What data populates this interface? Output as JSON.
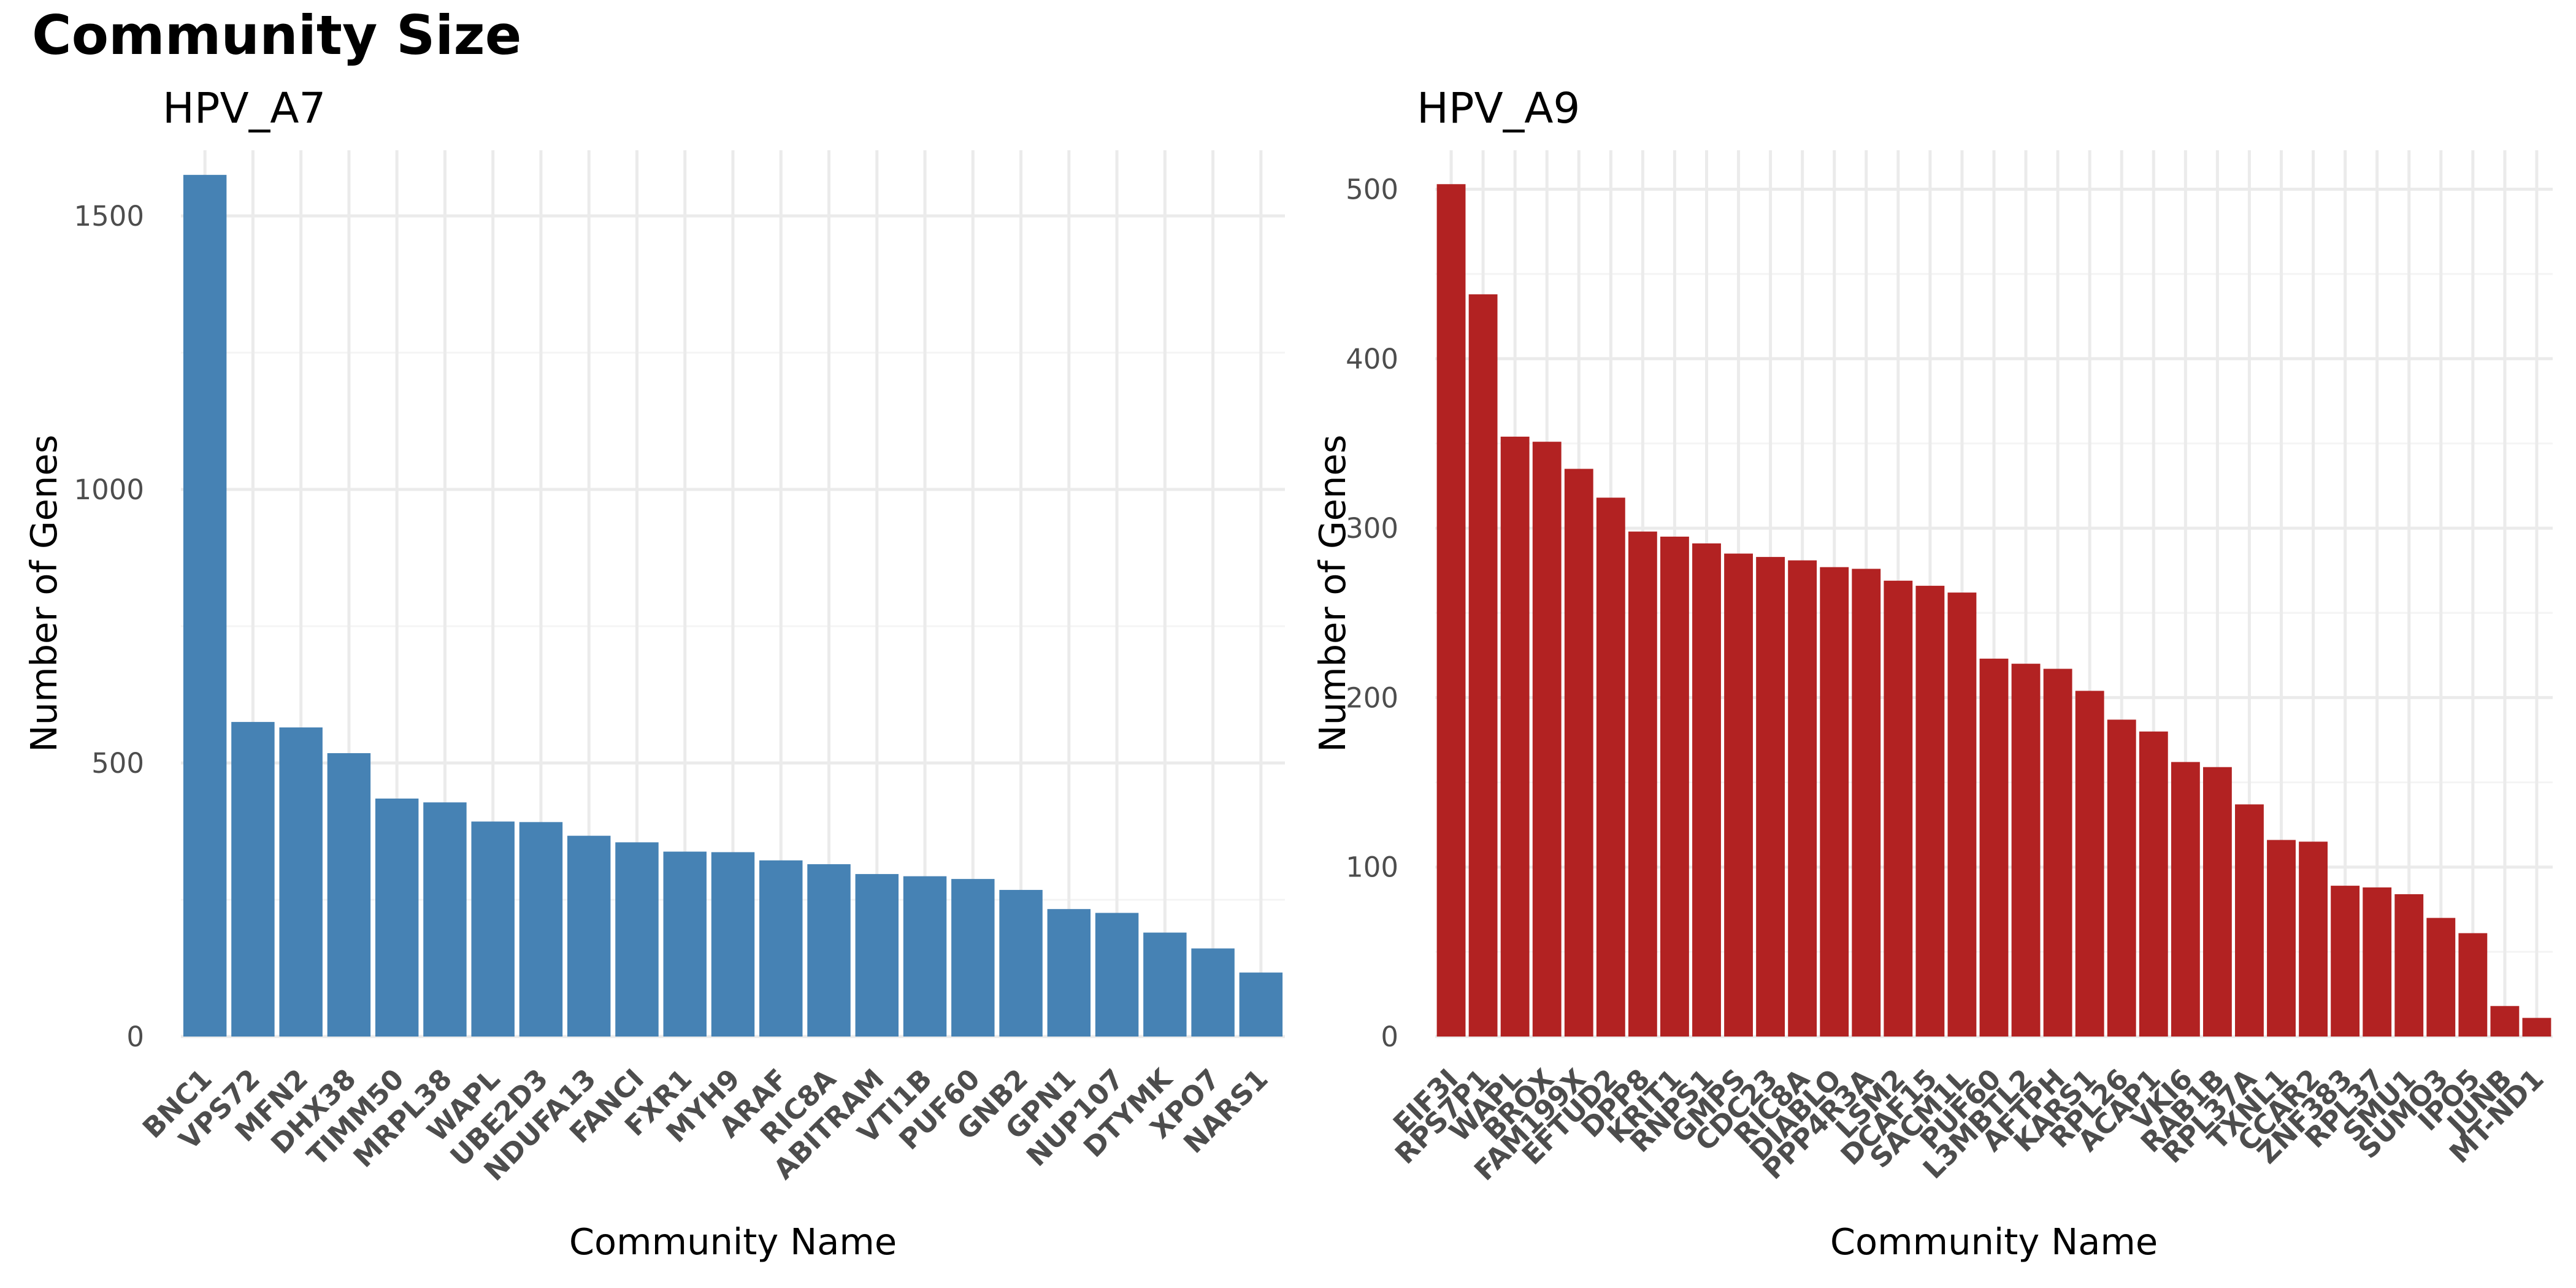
{
  "figure_title": "Community Size",
  "colors": {
    "HPV_A7": "#4682B4",
    "HPV_A9": "#B22222",
    "grid_major": "#ebebeb",
    "grid_minor": "#f4f4f4"
  },
  "chart_data": [
    {
      "type": "bar",
      "title": "HPV_A7",
      "xlabel": "Community Name",
      "ylabel": "Number of Genes",
      "ylim": [
        0,
        1620
      ],
      "yticks": [
        0,
        500,
        1000,
        1500
      ],
      "grid": true,
      "categories": [
        "BNC1",
        "VPS72",
        "MFN2",
        "DHX38",
        "TIMM50",
        "MRPL38",
        "WAPL",
        "UBE2D3",
        "NDUFA13",
        "FANCI",
        "FXR1",
        "MYH9",
        "ARAF",
        "RIC8A",
        "ABITRAM",
        "VTI1B",
        "PUF60",
        "GNB2",
        "GPN1",
        "NUP107",
        "DTYMK",
        "XPO7",
        "NARS1"
      ],
      "values": [
        1575,
        575,
        565,
        518,
        435,
        428,
        393,
        392,
        367,
        355,
        338,
        337,
        322,
        315,
        297,
        293,
        288,
        268,
        233,
        226,
        190,
        161,
        117
      ]
    },
    {
      "type": "bar",
      "title": "HPV_A9",
      "xlabel": "Community Name",
      "ylabel": "Number of Genes",
      "ylim": [
        0,
        523
      ],
      "yticks": [
        0,
        100,
        200,
        300,
        400,
        500
      ],
      "grid": true,
      "categories": [
        "EIF3I",
        "RPS7P1",
        "WAPL",
        "BROX",
        "FAM199X",
        "EFTUD2",
        "DPP8",
        "KRIT1",
        "RNPS1",
        "GMPS",
        "CDC23",
        "RIC8A",
        "DIABLO",
        "PPP4R3A",
        "LSM2",
        "DCAF15",
        "SACM1L",
        "PUF60",
        "L3MBTL2",
        "AFTPH",
        "KARS1",
        "RPL26",
        "ACAP1",
        "VKI6",
        "RAB1B",
        "RPL37A",
        "TXNL1",
        "CCAR2",
        "ZNF383",
        "RPL37",
        "SMU1",
        "SUMO3",
        "IPO5",
        "JUNB",
        "MT-ND1"
      ],
      "values": [
        503,
        438,
        354,
        351,
        335,
        318,
        298,
        295,
        291,
        285,
        283,
        281,
        277,
        276,
        269,
        266,
        262,
        223,
        220,
        217,
        204,
        187,
        180,
        162,
        159,
        137,
        116,
        115,
        89,
        88,
        84,
        70,
        61,
        18,
        11
      ]
    }
  ]
}
